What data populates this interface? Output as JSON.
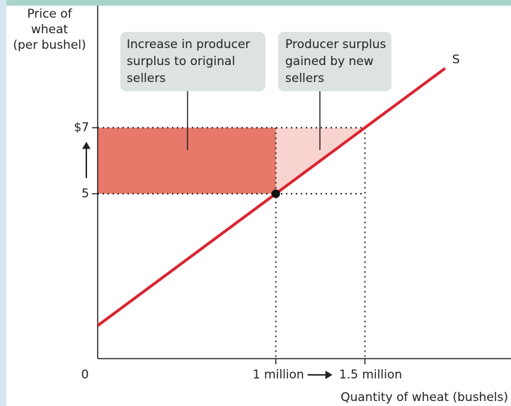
{
  "chart_data": {
    "type": "line",
    "y_label": [
      "Price of",
      "wheat",
      "(per bushel)"
    ],
    "x_label": "Quantity of wheat (bushels)",
    "xlim": [
      0,
      2.32
    ],
    "ylim": [
      0,
      10.7
    ],
    "xticks": [
      {
        "value": 0,
        "label": "0"
      },
      {
        "value": 1,
        "label": "1 million"
      },
      {
        "value": 1.5,
        "label": "1.5 million"
      }
    ],
    "yticks": [
      5,
      {
        "value": 7,
        "label": "$7"
      }
    ],
    "series": [
      {
        "name": "S",
        "color": "#d9252f",
        "x": [
          0,
          1.95
        ],
        "values": [
          1,
          8.8
        ]
      }
    ],
    "points": [
      {
        "x": 1,
        "y": 5
      },
      {
        "x": 1.5,
        "y": 7
      }
    ],
    "region_colors": [
      "#e8786a",
      "#f9d3cf"
    ],
    "annotations": [
      {
        "lines": [
          "Increase in producer",
          "surplus to original",
          "sellers"
        ]
      },
      {
        "lines": [
          "Producer surplus",
          "gained by new",
          "sellers"
        ]
      }
    ]
  }
}
